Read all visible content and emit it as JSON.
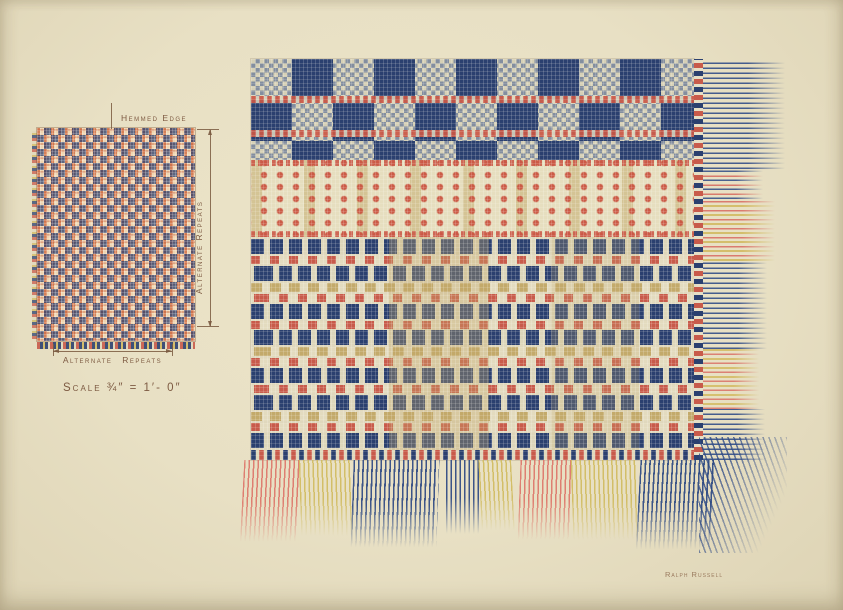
{
  "annotations": {
    "hemmed_edge_label": "Hemmed Edge",
    "vertical_dimension_label": "Alternate Repeats",
    "horizontal_dimension_label": "Alternate Repeats",
    "scale_label": "Scale ¾″ = 1′- 0″"
  },
  "signature": {
    "artist_name": "Ralph Russell"
  },
  "palette": {
    "paper": "#e8e0c4",
    "navy_weave": "#2b406f",
    "red_weave": "#c85b4b",
    "salmon_swatch": "#dd8a64",
    "gold_weave": "#c3aa6b",
    "cream_ground": "#e3dbbf",
    "fringe_blue": "#2e4a86",
    "fringe_pink": "#dd7468",
    "fringe_yellow": "#d2bb60",
    "ink": "#7d5a42"
  }
}
